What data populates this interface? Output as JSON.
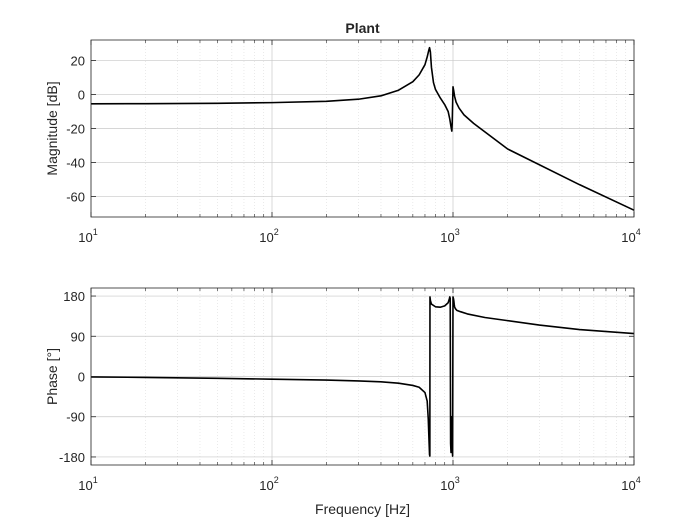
{
  "chart_data": [
    {
      "type": "line",
      "title": "Plant",
      "xlabel": "",
      "ylabel": "Magnitude [dB]",
      "xscale": "log",
      "xlim": [
        10,
        10000
      ],
      "ylim": [
        -72,
        32
      ],
      "xticks": [
        {
          "base": "10",
          "exp": "1",
          "value": 10
        },
        {
          "base": "10",
          "exp": "2",
          "value": 100
        },
        {
          "base": "10",
          "exp": "3",
          "value": 1000
        },
        {
          "base": "10",
          "exp": "4",
          "value": 10000
        }
      ],
      "yticks": [
        "20",
        "0",
        "-20",
        "-40",
        "-60"
      ],
      "ytick_values": [
        20,
        0,
        -20,
        -40,
        -60
      ],
      "grid": true,
      "series": [
        {
          "color": "#000000",
          "x": [
            10,
            20,
            50,
            100,
            200,
            300,
            400,
            500,
            600,
            650,
            700,
            720,
            735,
            742,
            750,
            760,
            780,
            800,
            850,
            900,
            940,
            960,
            975,
            985,
            990,
            1000,
            1010,
            1020,
            1040,
            1080,
            1150,
            1300,
            2000,
            5000,
            10000
          ],
          "y": [
            -5.5,
            -5.4,
            -5.2,
            -4.8,
            -4.0,
            -2.8,
            -0.8,
            2.5,
            7.5,
            11.5,
            17.5,
            22.0,
            26.0,
            27.5,
            25.0,
            16.0,
            7.0,
            3.0,
            -2.0,
            -6.0,
            -10.0,
            -14.5,
            -19.0,
            -21.5,
            -17.0,
            4.5,
            2.0,
            -1.0,
            -4.5,
            -8.0,
            -12.0,
            -17.0,
            -32.0,
            -53.0,
            -68.0
          ]
        }
      ]
    },
    {
      "type": "line",
      "title": "",
      "xlabel": "Frequency [Hz]",
      "ylabel": "Phase [°]",
      "xscale": "log",
      "xlim": [
        10,
        10000
      ],
      "ylim": [
        -198,
        198
      ],
      "xticks": [
        {
          "base": "10",
          "exp": "1",
          "value": 10
        },
        {
          "base": "10",
          "exp": "2",
          "value": 100
        },
        {
          "base": "10",
          "exp": "3",
          "value": 1000
        },
        {
          "base": "10",
          "exp": "4",
          "value": 10000
        }
      ],
      "yticks": [
        "180",
        "90",
        "0",
        "-90",
        "-180"
      ],
      "ytick_values": [
        180,
        90,
        0,
        -90,
        -180
      ],
      "grid": true,
      "series": [
        {
          "color": "#000000",
          "x": [
            10,
            20,
            50,
            100,
            200,
            300,
            400,
            500,
            600,
            650,
            700,
            720,
            730,
            738,
            742,
            745,
            746,
            750,
            760,
            800,
            850,
            900,
            940,
            955,
            960,
            965,
            970,
            975,
            980,
            985,
            990,
            995,
            1000,
            1005,
            1010,
            1015,
            1020,
            1030,
            1050,
            1100,
            1200,
            1500,
            2000,
            3000,
            5000,
            10000
          ],
          "y": [
            -1,
            -2,
            -4,
            -6,
            -8,
            -10,
            -12,
            -15,
            -20,
            -24,
            -36,
            -55,
            -95,
            -150,
            -175,
            -178,
            178,
            170,
            162,
            156,
            155,
            158,
            165,
            174,
            178,
            175,
            -150,
            -170,
            -90,
            -110,
            -160,
            -178,
            178,
            175,
            170,
            162,
            156,
            152,
            148,
            145,
            140,
            132,
            125,
            115,
            105,
            96
          ]
        }
      ]
    }
  ]
}
